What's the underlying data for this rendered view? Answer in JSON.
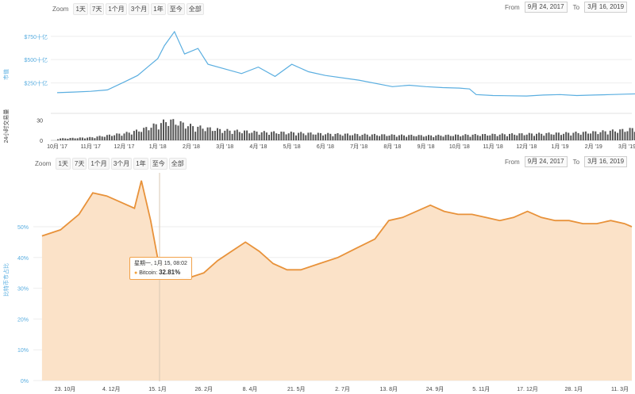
{
  "top": {
    "zoom_label": "Zoom",
    "zoom_buttons": [
      "1天",
      "7天",
      "1个月",
      "3个月",
      "1年",
      "至今",
      "全部"
    ],
    "from_label": "From",
    "from_value": "9月 24, 2017",
    "to_label": "To",
    "to_value": "3月 16, 2019"
  },
  "bottom": {
    "zoom_label": "Zoom",
    "zoom_buttons": [
      "1天",
      "7天",
      "1个月",
      "3个月",
      "1年",
      "至今",
      "全部"
    ],
    "from_label": "From",
    "from_value": "9月 24, 2017",
    "to_label": "To",
    "to_value": "3月 16, 2019",
    "tooltip": {
      "date": "星期一, 1月 15, 08:02",
      "series": "Bitcoin:",
      "value": "32.81%"
    }
  },
  "colors": {
    "market_cap_line": "#5aaee0",
    "volume_bars": "#555555",
    "dominance_line": "#e8923a",
    "dominance_fill": "#fbe2c8"
  },
  "chart_data": [
    {
      "type": "line",
      "ylabel": "市值",
      "y_tick_labels": [
        "$750十亿",
        "$500十亿",
        "$250十亿"
      ],
      "y_ticks": [
        750,
        500,
        250
      ],
      "ylim": [
        0,
        850
      ],
      "x_tick_labels": [
        "10月 '17",
        "11月 '17",
        "12月 '17",
        "1月 '18",
        "2月 '18",
        "3月 '18",
        "4月 '18",
        "5月 '18",
        "6月 '18",
        "7月 '18",
        "8月 '18",
        "9月 '18",
        "10月 '18",
        "11月 '18",
        "12月 '18",
        "1月 '19",
        "2月 '19",
        "3月 '19"
      ],
      "x": [
        0,
        0.5,
        1,
        1.5,
        2,
        2.4,
        2.7,
        3.0,
        3.2,
        3.5,
        3.8,
        4.2,
        4.5,
        5.0,
        5.5,
        6.0,
        6.5,
        7.0,
        7.5,
        8.0,
        9.0,
        10.0,
        10.5,
        11.0,
        11.5,
        12.0,
        12.3,
        12.5,
        13.0,
        14.0,
        14.5,
        15.0,
        15.5,
        16.0,
        16.5,
        17.0,
        17.5
      ],
      "values": [
        145,
        152,
        160,
        175,
        260,
        330,
        420,
        510,
        650,
        800,
        560,
        620,
        450,
        400,
        350,
        420,
        320,
        450,
        370,
        330,
        280,
        210,
        225,
        210,
        200,
        195,
        185,
        125,
        115,
        110,
        120,
        125,
        115,
        120,
        125,
        130,
        135
      ]
    },
    {
      "type": "bar",
      "ylabel": "24小时交易量",
      "y_tick_labels": [
        "30",
        "0"
      ],
      "ylim": [
        0,
        40
      ],
      "x": [
        0,
        1,
        2,
        2.5,
        3,
        3.3,
        3.6,
        4,
        4.5,
        5,
        6,
        7,
        8,
        9,
        10,
        11,
        12,
        13,
        14,
        15,
        16,
        17,
        17.5
      ],
      "values": [
        3,
        5,
        12,
        18,
        28,
        34,
        30,
        24,
        20,
        17,
        14,
        13,
        11,
        10,
        9,
        8,
        9,
        10,
        11,
        12,
        14,
        18,
        24
      ]
    },
    {
      "type": "area",
      "ylabel": "比特币市占比",
      "y_tick_labels": [
        "0%",
        "10%",
        "20%",
        "30%",
        "40%",
        "50%"
      ],
      "y_ticks": [
        0,
        10,
        20,
        30,
        40,
        50
      ],
      "ylim": [
        0,
        67
      ],
      "x_tick_labels": [
        "23. 10月",
        "4. 12月",
        "15. 1月",
        "26. 2月",
        "8. 4月",
        "21. 5月",
        "2. 7月",
        "13. 8月",
        "24. 9月",
        "5. 11月",
        "17. 12月",
        "28. 1月",
        "11. 3月"
      ],
      "x": [
        -0.5,
        -0.1,
        0.3,
        0.6,
        0.9,
        1.2,
        1.5,
        1.65,
        1.85,
        2.0,
        2.3,
        2.6,
        3.0,
        3.3,
        3.6,
        3.9,
        4.2,
        4.5,
        4.8,
        5.1,
        5.5,
        5.9,
        6.3,
        6.7,
        7.0,
        7.3,
        7.6,
        7.9,
        8.2,
        8.5,
        8.8,
        9.1,
        9.4,
        9.7,
        10.0,
        10.3,
        10.6,
        10.9,
        11.2,
        11.5,
        11.8,
        12.1,
        12.5
      ],
      "values": [
        47,
        49,
        54,
        61,
        60,
        58,
        56,
        65,
        52,
        40,
        34,
        33,
        35,
        39,
        42,
        45,
        42,
        38,
        36,
        36,
        38,
        40,
        43,
        46,
        52,
        53,
        55,
        57,
        55,
        54,
        54,
        53,
        52,
        53,
        55,
        53,
        52,
        52,
        51,
        51,
        52,
        51,
        50
      ]
    }
  ]
}
